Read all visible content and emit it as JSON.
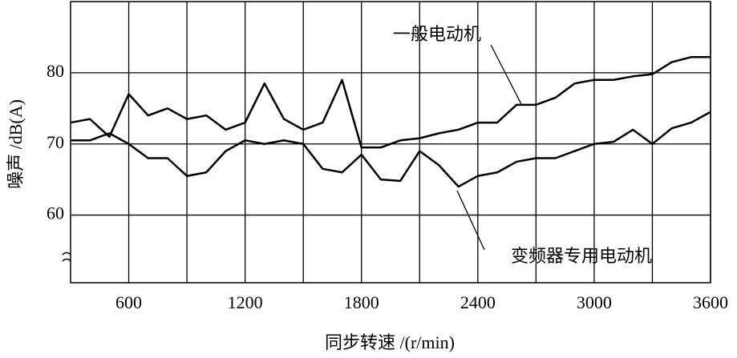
{
  "chart_data": {
    "type": "line",
    "x_label": "同步转速 /(r/min)",
    "y_label": "噪声 /dB(A)",
    "x": [
      300,
      400,
      500,
      600,
      700,
      800,
      900,
      1000,
      1100,
      1200,
      1300,
      1400,
      1500,
      1600,
      1700,
      1800,
      1900,
      2000,
      2100,
      2200,
      2300,
      2400,
      2500,
      2600,
      2700,
      2800,
      2900,
      3000,
      3100,
      3200,
      3300,
      3400,
      3500,
      3600
    ],
    "series": [
      {
        "name": "一般电动机",
        "color": "#000000",
        "values": [
          73,
          73.5,
          71,
          77,
          74,
          75,
          73.5,
          74,
          72,
          73,
          78.5,
          73.5,
          72,
          73,
          79,
          69.5,
          69.5,
          70.5,
          70.8,
          71.5,
          72,
          73,
          73,
          75.5,
          75.5,
          76.5,
          78.5,
          79,
          79,
          79.5,
          79.8,
          81.5,
          82.2,
          82.2
        ]
      },
      {
        "name": "变频器专用电动机",
        "color": "#000000",
        "values": [
          70.5,
          70.5,
          71.5,
          70,
          68,
          68,
          65.5,
          66,
          69,
          70.5,
          70,
          70.5,
          70,
          66.5,
          66,
          68.5,
          65,
          64.8,
          69,
          67,
          64,
          65.5,
          66,
          67.5,
          68,
          68,
          69,
          70,
          70.3,
          72,
          70,
          72.2,
          73,
          74.5
        ]
      }
    ],
    "xlim": [
      300,
      3600
    ],
    "xticks": [
      600,
      1200,
      1800,
      2400,
      3000,
      3600
    ],
    "xminor": [
      900,
      1500,
      2100,
      2700,
      3300
    ],
    "ylim": [
      50.5,
      90
    ],
    "yticks": [
      60,
      70,
      80
    ],
    "grid": true
  }
}
